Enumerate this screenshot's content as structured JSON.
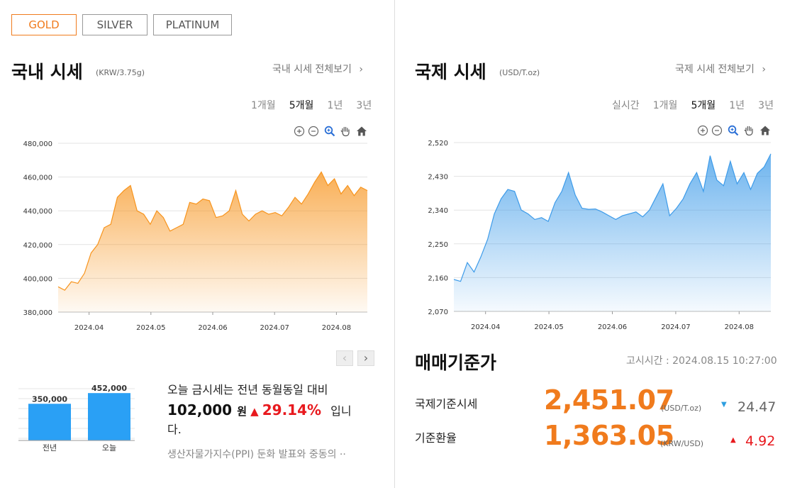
{
  "metal_tabs": [
    {
      "label": "GOLD",
      "active": true
    },
    {
      "label": "SILVER",
      "active": false
    },
    {
      "label": "PLATINUM",
      "active": false
    }
  ],
  "domestic": {
    "title": "국내 시세",
    "unit": "(KRW/3.75g)",
    "more_link": "국내 시세 전체보기",
    "periods": [
      "1개월",
      "5개월",
      "1년",
      "3년"
    ],
    "active_period": "5개월"
  },
  "international": {
    "title": "국제 시세",
    "unit": "(USD/T.oz)",
    "more_link": "국제 시세 전체보기",
    "periods": [
      "실시간",
      "1개월",
      "5개월",
      "1년",
      "3년"
    ],
    "active_period": "5개월"
  },
  "chart_tools": [
    "zoom-in-icon",
    "zoom-out-icon",
    "magnify-icon",
    "pan-hand-icon",
    "home-icon"
  ],
  "chart_data": [
    {
      "type": "area",
      "title": "",
      "color": "#f7941d",
      "yticks": [
        "480,000",
        "460,000",
        "440,000",
        "420,000",
        "400,000",
        "380,000"
      ],
      "xticks": [
        "2024.04",
        "2024.05",
        "2024.06",
        "2024.07",
        "2024.08"
      ],
      "ylim": [
        380000,
        480000
      ],
      "grid": true,
      "x": [
        0,
        3,
        6,
        9,
        12,
        15,
        18,
        21,
        24,
        27,
        30,
        33,
        36,
        39,
        42,
        45,
        48,
        51,
        54,
        57,
        60,
        63,
        66,
        69,
        72,
        75,
        78,
        81,
        84,
        87,
        90,
        93,
        96,
        99,
        102,
        105,
        108,
        111,
        114,
        117,
        120,
        123,
        126,
        129,
        132,
        135,
        138,
        141
      ],
      "values": [
        395000,
        393000,
        398000,
        397000,
        403000,
        415000,
        420000,
        430000,
        432000,
        448000,
        452000,
        455000,
        440000,
        438000,
        432000,
        440000,
        436000,
        428000,
        430000,
        432000,
        445000,
        444000,
        447000,
        446000,
        436000,
        437000,
        440000,
        452000,
        438000,
        434000,
        438000,
        440000,
        438000,
        439000,
        437000,
        442000,
        448000,
        444000,
        450000,
        457000,
        463000,
        455000,
        459000,
        450000,
        455000,
        449000,
        454000,
        452000
      ]
    },
    {
      "type": "area",
      "title": "",
      "color": "#3d9be9",
      "yticks": [
        "2,520",
        "2,430",
        "2,340",
        "2,250",
        "2,160",
        "2,070"
      ],
      "xticks": [
        "2024.04",
        "2024.05",
        "2024.06",
        "2024.07",
        "2024.08"
      ],
      "ylim": [
        2070,
        2520
      ],
      "grid": true,
      "x": [
        0,
        3,
        6,
        9,
        12,
        15,
        18,
        21,
        24,
        27,
        30,
        33,
        36,
        39,
        42,
        45,
        48,
        51,
        54,
        57,
        60,
        63,
        66,
        69,
        72,
        75,
        78,
        81,
        84,
        87,
        90,
        93,
        96,
        99,
        102,
        105,
        108,
        111,
        114,
        117,
        120,
        123,
        126,
        129,
        132,
        135,
        138,
        141
      ],
      "values": [
        2155,
        2150,
        2200,
        2175,
        2215,
        2262,
        2330,
        2370,
        2395,
        2390,
        2340,
        2330,
        2315,
        2320,
        2310,
        2360,
        2390,
        2440,
        2380,
        2345,
        2342,
        2343,
        2335,
        2325,
        2315,
        2325,
        2330,
        2335,
        2322,
        2340,
        2375,
        2410,
        2325,
        2345,
        2370,
        2410,
        2440,
        2390,
        2485,
        2420,
        2405,
        2470,
        2410,
        2440,
        2395,
        2438,
        2455,
        2490
      ]
    },
    {
      "type": "bar",
      "title": "",
      "categories": [
        "전년",
        "오늘"
      ],
      "values": [
        350000,
        452000
      ],
      "value_labels": [
        "350,000",
        "452,000"
      ],
      "color": "#2aa0f5",
      "ylim": [
        0,
        460000
      ]
    }
  ],
  "comparison": {
    "line1": "오늘 금시세는 전년 동월동일 대비",
    "diff": "102,000",
    "won": "원",
    "up_arrow": "▲",
    "pct": "29.14%",
    "suffix": "입니",
    "line3": "다.",
    "news": "생산자물가지수(PPI) 둔화 발표와 중동의 ··"
  },
  "base_price": {
    "title": "매매기준가",
    "notice_time": "고시시간 : 2024.08.15 10:27:00",
    "rows": [
      {
        "label": "국제기준시세",
        "value": "2,451.07",
        "unit": "(USD/T.oz)",
        "arrow": "▼",
        "change": "24.47",
        "direction": "down"
      },
      {
        "label": "기준환율",
        "value": "1,363.05",
        "unit": "(KRW/USD)",
        "arrow": "▲",
        "change": "4.92",
        "direction": "up"
      }
    ]
  },
  "colors": {
    "accent": "#f07b1d",
    "up": "#e8191e",
    "down": "#2d9ee0",
    "bar": "#2aa0f5"
  }
}
